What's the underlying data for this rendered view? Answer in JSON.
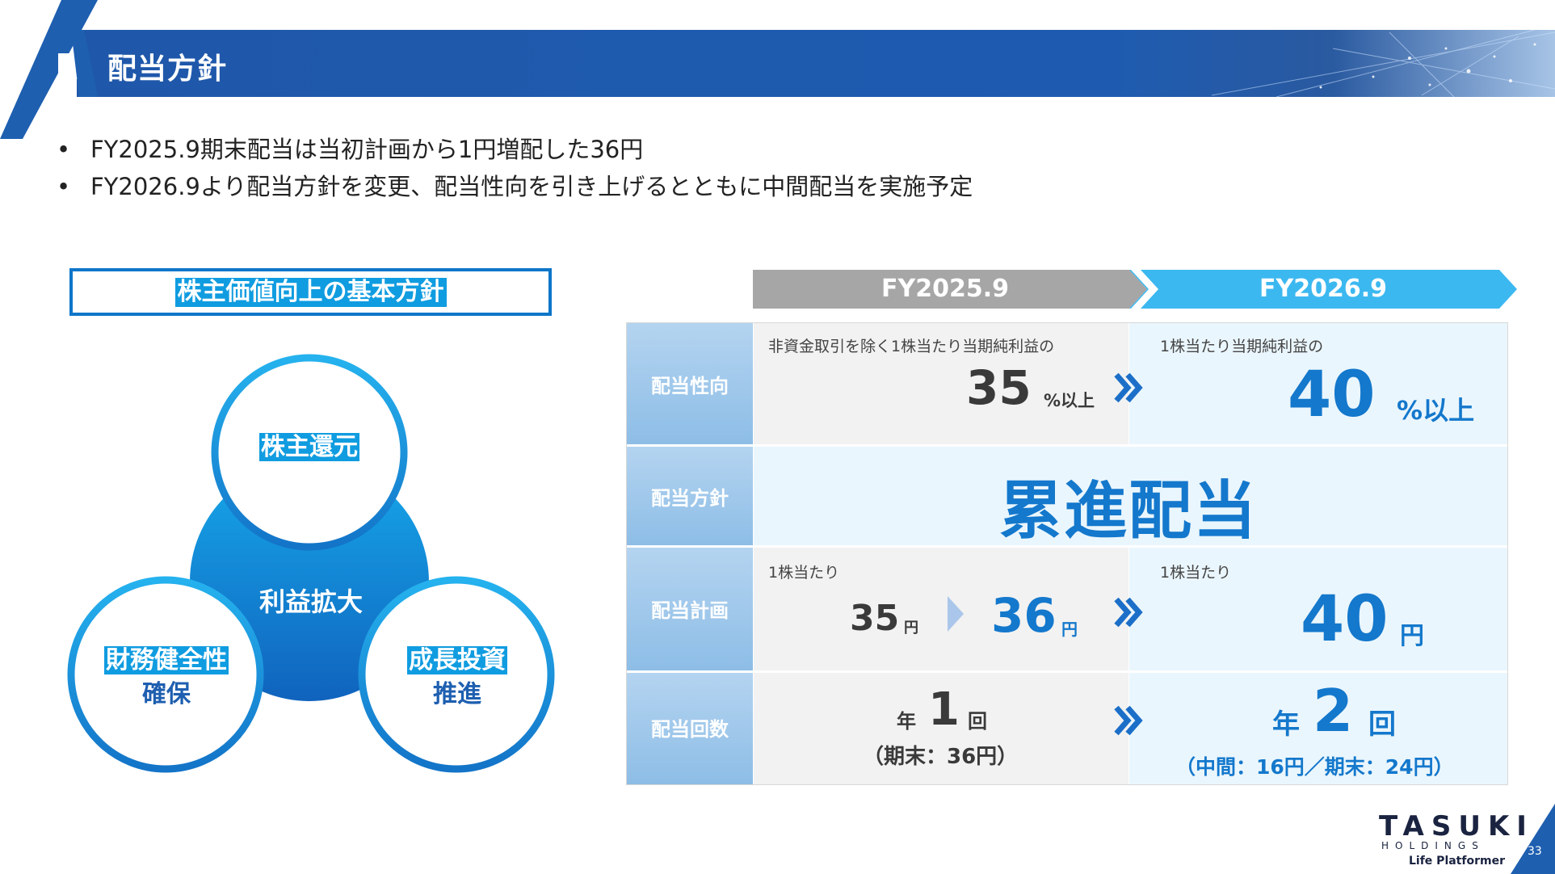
{
  "header": {
    "title": "配当方針"
  },
  "bullets": [
    "FY2025.9期末配当は当初計画から1円増配した36円",
    "FY2026.9より配当方針を変更、配当性向を引き上げるとともに中間配当を実施予定"
  ],
  "bullet_marker": "•",
  "policy": {
    "title": "株主価値向上の基本方針",
    "core": "利益拡大",
    "circles": {
      "top": [
        "株主還元"
      ],
      "left": [
        "財務健全性",
        "確保"
      ],
      "right": [
        "成長投資",
        "推進"
      ]
    }
  },
  "table": {
    "years": [
      "FY2025.9",
      "FY2026.9"
    ],
    "rows": {
      "payout": {
        "label": "配当性向",
        "fy2025": {
          "note": "非資金取引を除く1株当たり当期純利益の",
          "value": "35",
          "unit": "%以上"
        },
        "fy2026": {
          "note": "1株当たり当期純利益の",
          "value": "40",
          "unit": "%以上"
        }
      },
      "policy": {
        "label": "配当方針",
        "value": "累進配当"
      },
      "plan": {
        "label": "配当計画",
        "fy2025": {
          "note": "1株当たり",
          "from": "35",
          "from_unit": "円",
          "to": "36",
          "to_unit": "円"
        },
        "fy2026": {
          "note": "1株当たり",
          "value": "40",
          "unit": "円"
        }
      },
      "count": {
        "label": "配当回数",
        "fy2025": {
          "prefix": "年",
          "value": "1",
          "unit": "回",
          "detail": "（期末：36円）"
        },
        "fy2026": {
          "prefix": "年",
          "value": "2",
          "unit": "回",
          "detail": "（中間：16円／期末：24円）"
        }
      }
    }
  },
  "logo": {
    "name": "TASUKI",
    "sub": "HOLDINGS",
    "tagline": "Life Platformer"
  },
  "page_number": "33",
  "colors": {
    "brand_blue": "#1e5fb0",
    "accent_blue": "#109ce0",
    "gray_band": "#a6a6a6",
    "row_head": "#9dc4e8"
  }
}
